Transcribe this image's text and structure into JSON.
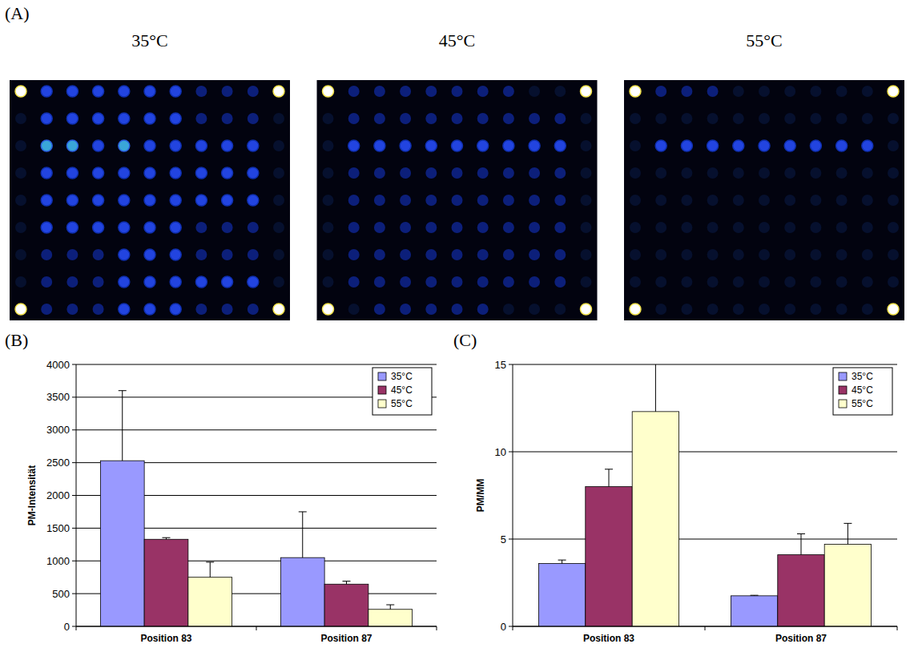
{
  "chart_data": [
    {
      "type": "image_grid",
      "panel_label": "(A)",
      "images": [
        {
          "title": "35°C",
          "spot_levels": [
            [
              4,
              2,
              2,
              2,
              2,
              2,
              2,
              1,
              1,
              1,
              4
            ],
            [
              0,
              2,
              2,
              2,
              2,
              2,
              2,
              1,
              1,
              1,
              0
            ],
            [
              0,
              3,
              3,
              2,
              3,
              2,
              2,
              2,
              2,
              2,
              0
            ],
            [
              0,
              2,
              2,
              2,
              2,
              2,
              2,
              2,
              2,
              2,
              0
            ],
            [
              0,
              2,
              2,
              2,
              2,
              2,
              2,
              2,
              2,
              2,
              0
            ],
            [
              0,
              2,
              2,
              2,
              2,
              2,
              2,
              1,
              1,
              1,
              0
            ],
            [
              0,
              1,
              1,
              1,
              2,
              2,
              2,
              1,
              1,
              1,
              0
            ],
            [
              0,
              1,
              1,
              1,
              2,
              2,
              2,
              2,
              2,
              2,
              0
            ],
            [
              4,
              1,
              1,
              1,
              2,
              2,
              2,
              1,
              1,
              1,
              4
            ]
          ]
        },
        {
          "title": "45°C",
          "spot_levels": [
            [
              4,
              1,
              1,
              1,
              1,
              1,
              1,
              1,
              0,
              0,
              4
            ],
            [
              0,
              1,
              1,
              1,
              1,
              1,
              1,
              1,
              1,
              1,
              0
            ],
            [
              0,
              2,
              2,
              2,
              2,
              2,
              2,
              2,
              2,
              2,
              0
            ],
            [
              0,
              1,
              1,
              1,
              1,
              1,
              1,
              1,
              1,
              1,
              0
            ],
            [
              0,
              1,
              1,
              1,
              1,
              1,
              1,
              1,
              1,
              1,
              0
            ],
            [
              0,
              1,
              1,
              1,
              1,
              1,
              1,
              1,
              1,
              1,
              0
            ],
            [
              0,
              1,
              1,
              1,
              1,
              1,
              1,
              1,
              1,
              1,
              0
            ],
            [
              0,
              1,
              1,
              1,
              1,
              1,
              1,
              1,
              1,
              1,
              0
            ],
            [
              4,
              0,
              1,
              1,
              1,
              1,
              1,
              0,
              0,
              0,
              4
            ]
          ]
        },
        {
          "title": "55°C",
          "spot_levels": [
            [
              4,
              1,
              1,
              1,
              0,
              0,
              0,
              0,
              0,
              0,
              4
            ],
            [
              0,
              0,
              0,
              0,
              0,
              0,
              0,
              0,
              0,
              0,
              0
            ],
            [
              0,
              2,
              2,
              2,
              2,
              2,
              2,
              2,
              2,
              2,
              0
            ],
            [
              0,
              0,
              0,
              0,
              0,
              0,
              0,
              0,
              0,
              0,
              0
            ],
            [
              0,
              0,
              0,
              0,
              0,
              0,
              0,
              0,
              0,
              0,
              0
            ],
            [
              0,
              0,
              0,
              0,
              0,
              0,
              0,
              0,
              0,
              0,
              0
            ],
            [
              0,
              0,
              0,
              0,
              0,
              0,
              0,
              0,
              0,
              0,
              0
            ],
            [
              0,
              0,
              0,
              0,
              0,
              0,
              0,
              0,
              0,
              0,
              0
            ],
            [
              4,
              0,
              0,
              0,
              0,
              0,
              0,
              0,
              0,
              0,
              4
            ]
          ]
        }
      ]
    },
    {
      "type": "bar",
      "panel_label": "(B)",
      "y_label": "PM-Intensität",
      "categories": [
        "Position 83",
        "Position 87"
      ],
      "series": [
        {
          "name": "35°C",
          "color": "#9999ff",
          "values": [
            2530,
            1050
          ],
          "errors": [
            1070,
            700
          ]
        },
        {
          "name": "45°C",
          "color": "#993366",
          "values": [
            1330,
            645
          ],
          "errors": [
            25,
            45
          ]
        },
        {
          "name": "55°C",
          "color": "#ffffcc",
          "values": [
            750,
            260
          ],
          "errors": [
            230,
            70
          ]
        }
      ],
      "ylim": [
        0,
        4000
      ],
      "yticks": [
        0,
        500,
        1000,
        1500,
        2000,
        2500,
        3000,
        3500,
        4000
      ],
      "grid": true,
      "legend": "top-right"
    },
    {
      "type": "bar",
      "panel_label": "(C)",
      "y_label": "PM/MM",
      "categories": [
        "Position 83",
        "Position 87"
      ],
      "series": [
        {
          "name": "35°C",
          "color": "#9999ff",
          "values": [
            3.6,
            1.75
          ],
          "errors": [
            0.2,
            0.03
          ]
        },
        {
          "name": "45°C",
          "color": "#993366",
          "values": [
            8.0,
            4.1
          ],
          "errors": [
            1.0,
            1.2
          ]
        },
        {
          "name": "55°C",
          "color": "#ffffcc",
          "values": [
            12.3,
            4.7
          ],
          "errors": [
            3.0,
            1.2
          ]
        }
      ],
      "ylim": [
        0,
        15
      ],
      "yticks": [
        0,
        5,
        10,
        15
      ],
      "grid": true,
      "legend": "top-right"
    }
  ]
}
